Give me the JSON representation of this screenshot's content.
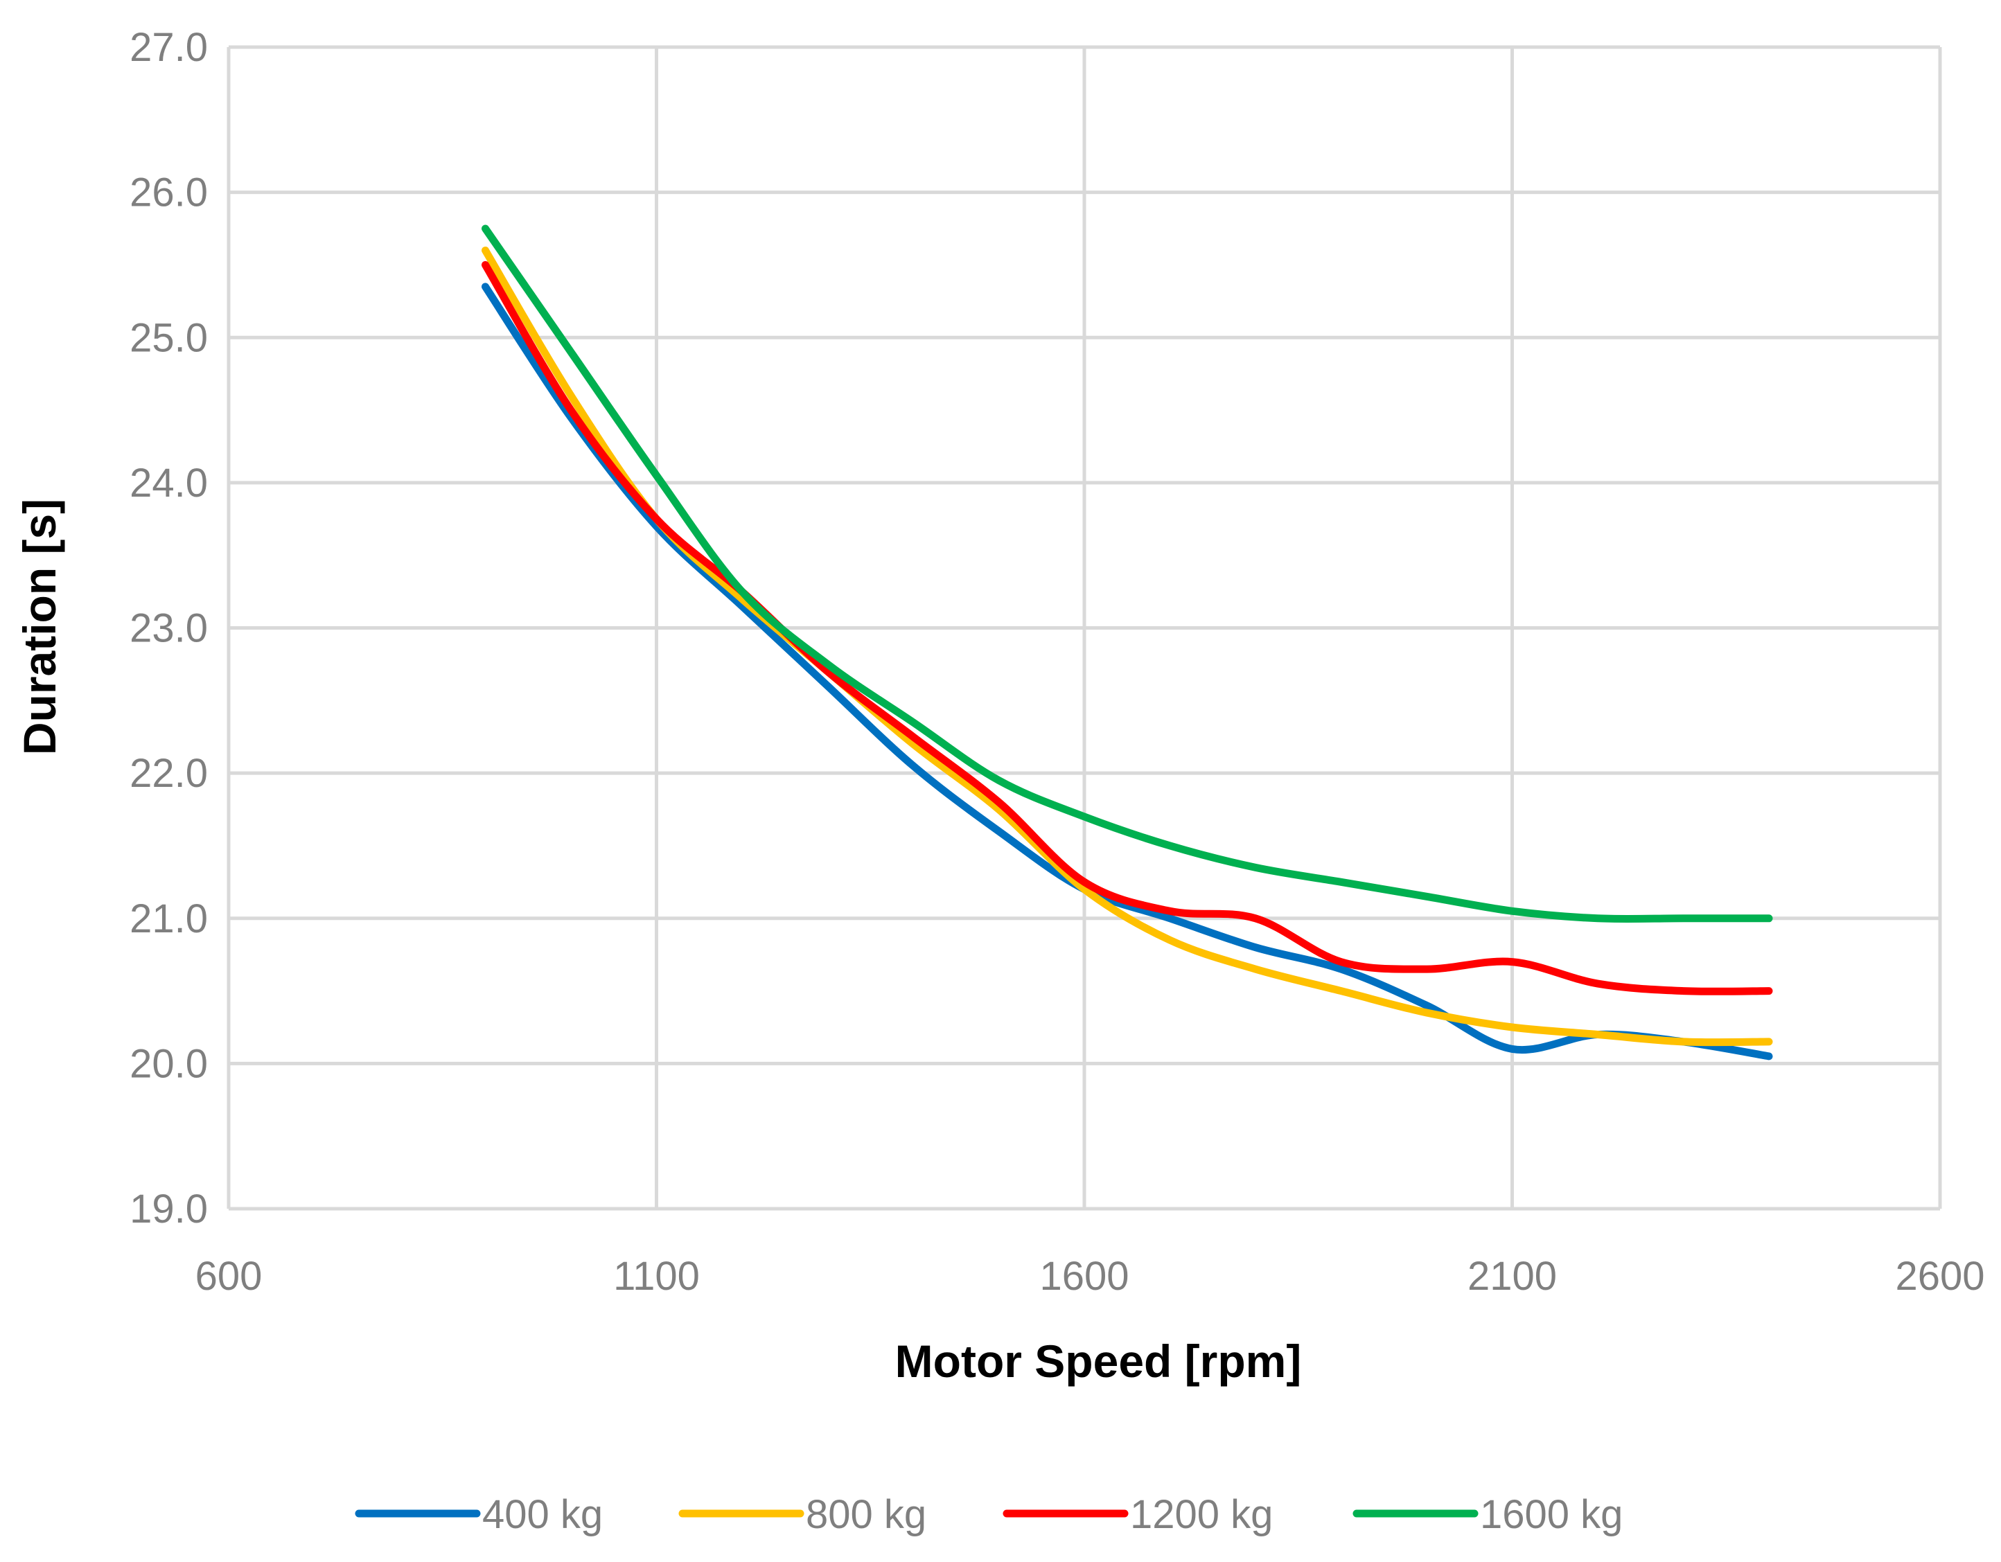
{
  "chart_data": {
    "type": "line",
    "title": "",
    "xlabel": "Motor Speed [rpm]",
    "ylabel": "Duration [s]",
    "xlim": [
      600,
      2600
    ],
    "ylim": [
      19.0,
      27.0
    ],
    "x_ticks": [
      600,
      1100,
      1600,
      2100,
      2600
    ],
    "x_tick_labels": [
      "600",
      "1100",
      "1600",
      "2100",
      "2600"
    ],
    "y_ticks": [
      19.0,
      20.0,
      21.0,
      22.0,
      23.0,
      24.0,
      25.0,
      26.0,
      27.0
    ],
    "y_tick_labels": [
      "19.0",
      "20.0",
      "21.0",
      "22.0",
      "23.0",
      "24.0",
      "25.0",
      "26.0",
      "27.0"
    ],
    "grid": true,
    "legend_position": "bottom",
    "x": [
      900,
      1000,
      1100,
      1200,
      1300,
      1400,
      1500,
      1600,
      1700,
      1800,
      1900,
      2000,
      2100,
      2200,
      2300,
      2400
    ],
    "series": [
      {
        "name": "400 kg",
        "color": "#0070C0",
        "values": [
          25.35,
          24.45,
          23.7,
          23.15,
          22.6,
          22.05,
          21.6,
          21.2,
          21.0,
          20.8,
          20.65,
          20.4,
          20.1,
          20.2,
          20.15,
          20.05
        ]
      },
      {
        "name": "800 kg",
        "color": "#FFC000",
        "values": [
          25.6,
          24.6,
          23.75,
          23.2,
          22.7,
          22.2,
          21.75,
          21.2,
          20.85,
          20.65,
          20.5,
          20.35,
          20.25,
          20.2,
          20.15,
          20.15
        ]
      },
      {
        "name": "1200 kg",
        "color": "#FF0000",
        "values": [
          25.5,
          24.5,
          23.75,
          23.25,
          22.7,
          22.25,
          21.8,
          21.25,
          21.05,
          21.0,
          20.7,
          20.65,
          20.7,
          20.55,
          20.5,
          20.5
        ]
      },
      {
        "name": "1600 kg",
        "color": "#00B050",
        "values": [
          25.75,
          24.9,
          24.05,
          23.25,
          22.75,
          22.35,
          21.95,
          21.7,
          21.5,
          21.35,
          21.25,
          21.15,
          21.05,
          21.0,
          21.0,
          21.0
        ]
      }
    ]
  }
}
